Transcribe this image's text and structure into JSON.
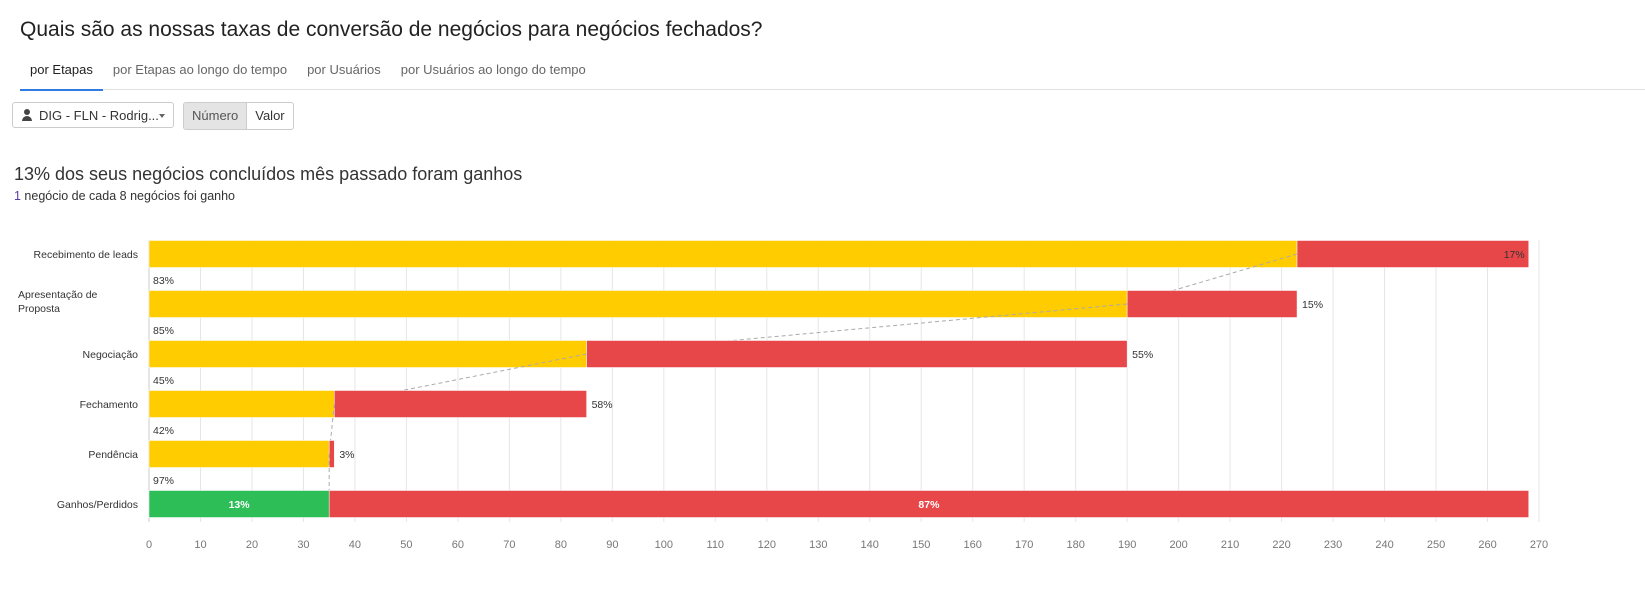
{
  "title": "Quais são as nossas taxas de conversão de negócios para negócios fechados?",
  "tabs": [
    {
      "label": "por Etapas",
      "active": true
    },
    {
      "label": "por Etapas ao longo do tempo"
    },
    {
      "label": "por Usuários"
    },
    {
      "label": "por Usuários ao longo do tempo"
    }
  ],
  "filter": {
    "user_select": "DIG - FLN - Rodrig...",
    "icon": "user-icon"
  },
  "toggle": {
    "numero": "Número",
    "valor": "Valor",
    "selected": "Número"
  },
  "summary": {
    "headline": "13% dos seus negócios concluídos mês passado foram ganhos",
    "sub_count": "1",
    "sub_rest": " negócio de cada 8 negócios foi ganho"
  },
  "colors": {
    "won": "#ffcc00",
    "lost": "#e84749",
    "final_won": "#2dbe57"
  },
  "chart_data": {
    "type": "bar",
    "stacked": true,
    "orientation": "horizontal",
    "categories": [
      "Recebimento de leads",
      "Apresentação de Proposta",
      "Negociação",
      "Fechamento",
      "Pendência",
      "Ganhos/Perdidos"
    ],
    "series": [
      {
        "values": [
          223,
          190,
          85,
          36,
          35,
          35
        ]
      },
      {
        "values": [
          45,
          33,
          105,
          49,
          1,
          233
        ]
      }
    ],
    "lost_labels": [
      "17%",
      "15%",
      "55%",
      "58%",
      "3%",
      "87%"
    ],
    "won_label_final": "13%",
    "conversion_labels": [
      "83%",
      "85%",
      "45%",
      "42%",
      "97%"
    ],
    "xlim": [
      0,
      270
    ],
    "xticks": [
      0,
      10,
      20,
      30,
      40,
      50,
      60,
      70,
      80,
      90,
      100,
      110,
      120,
      130,
      140,
      150,
      160,
      170,
      180,
      190,
      200,
      210,
      220,
      230,
      240,
      250,
      260,
      270
    ],
    "grid": true
  }
}
